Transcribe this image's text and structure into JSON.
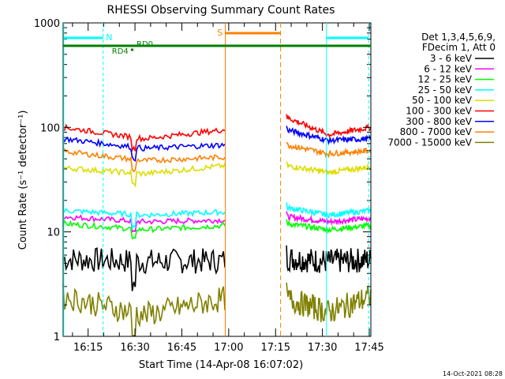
{
  "chart_data": {
    "type": "line",
    "title": "RHESSI Observing Summary Count Rates",
    "xlabel": "Start Time (14-Apr-08 16:07:02)",
    "ylabel": "Count Rate (s⁻¹ detector⁻¹)",
    "xlim_min": [
      7.0,
      105.5
    ],
    "ylim": [
      1,
      1000
    ],
    "yscale": "log",
    "xticks": [
      {
        "label": "16:15",
        "m": 15
      },
      {
        "label": "16:30",
        "m": 30
      },
      {
        "label": "16:45",
        "m": 45
      },
      {
        "label": "17:00",
        "m": 60
      },
      {
        "label": "17:15",
        "m": 75
      },
      {
        "label": "17:30",
        "m": 90
      },
      {
        "label": "17:45",
        "m": 105
      }
    ],
    "yticks": [
      {
        "label": "1",
        "v": 1
      },
      {
        "label": "10",
        "v": 10
      },
      {
        "label": "100",
        "v": 100
      },
      {
        "label": "1000",
        "v": 1000
      }
    ],
    "legend_header": [
      "Det 1,3,4,5,6,9,",
      "FDecim 1, Att 0"
    ],
    "series": [
      {
        "name": "3 - 6 keV",
        "color": "#000000",
        "segA": [
          5.5,
          5.2,
          5.3
        ],
        "segB": [
          5.6,
          5.2,
          5.4
        ]
      },
      {
        "name": "6 - 12 keV",
        "color": "#ff00ff",
        "segA": [
          14.0,
          12.5,
          13.0
        ],
        "segB": [
          14.0,
          12.5,
          13.5
        ]
      },
      {
        "name": "12 - 25 keV",
        "color": "#00ff00",
        "segA": [
          12.0,
          10.5,
          11.5
        ],
        "segB": [
          12.0,
          10.5,
          11.5
        ]
      },
      {
        "name": "25 - 50 keV",
        "color": "#00ffff",
        "segA": [
          16.0,
          14.5,
          15.5
        ],
        "segB": [
          17.0,
          14.5,
          16.0
        ]
      },
      {
        "name": "50 - 100 keV",
        "color": "#dddd00",
        "segA": [
          41.0,
          36.0,
          43.0
        ],
        "segB": [
          43.0,
          37.0,
          42.0
        ]
      },
      {
        "name": "100 - 300 keV",
        "color": "#ff0000",
        "segA": [
          100.0,
          78.0,
          95.0
        ],
        "segB": [
          125.0,
          85.0,
          100.0
        ]
      },
      {
        "name": "300 - 800 keV",
        "color": "#0000ff",
        "segA": [
          78.0,
          63.0,
          68.0
        ],
        "segB": [
          95.0,
          75.0,
          78.0
        ]
      },
      {
        "name": "800 - 7000 keV",
        "color": "#ff8000",
        "segA": [
          59.0,
          48.0,
          52.0
        ],
        "segB": [
          68.0,
          56.0,
          60.0
        ]
      },
      {
        "name": "7000 - 15000 keV",
        "color": "#808000",
        "segA": [
          2.4,
          1.6,
          2.3
        ],
        "segB": [
          2.3,
          1.7,
          2.4
        ]
      }
    ],
    "segments_min": {
      "A": [
        7.0,
        58.8
      ],
      "B": [
        78.5,
        105.5
      ]
    },
    "annotations": [
      {
        "label": "N",
        "color": "#00ffff",
        "kind": "night"
      },
      {
        "label": "S",
        "color": "#ff8000",
        "kind": "saa"
      },
      {
        "label": "RD4",
        "color": "#008000",
        "kind": "decim"
      },
      {
        "label": "RD0",
        "color": "#008000",
        "kind": "decim"
      }
    ],
    "footer_date": "14-Oct-2021 08:28"
  }
}
